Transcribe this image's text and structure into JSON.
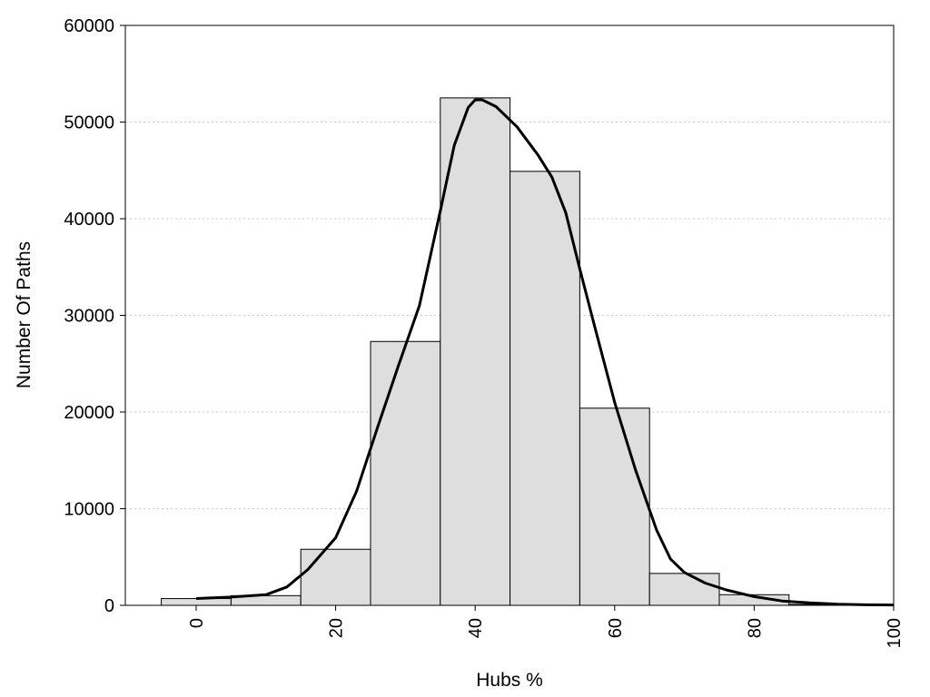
{
  "chart_data": {
    "type": "bar",
    "title": "",
    "xlabel": "Hubs %",
    "ylabel": "Number Of Paths",
    "xlim": [
      -10,
      100
    ],
    "ylim": [
      0,
      60000
    ],
    "x_ticks": [
      0,
      20,
      40,
      60,
      80,
      100
    ],
    "y_ticks": [
      0,
      10000,
      20000,
      30000,
      40000,
      50000,
      60000
    ],
    "grid": "horizontal dotted",
    "legend": "none",
    "bar_fill": "#dedede",
    "bar_edge": "#000000",
    "bins": [
      {
        "start": -5,
        "end": 5,
        "value": 700
      },
      {
        "start": 5,
        "end": 15,
        "value": 1000
      },
      {
        "start": 15,
        "end": 25,
        "value": 5800
      },
      {
        "start": 25,
        "end": 35,
        "value": 27300
      },
      {
        "start": 35,
        "end": 45,
        "value": 52500
      },
      {
        "start": 45,
        "end": 55,
        "value": 44900
      },
      {
        "start": 55,
        "end": 65,
        "value": 20400
      },
      {
        "start": 65,
        "end": 75,
        "value": 3300
      },
      {
        "start": 75,
        "end": 85,
        "value": 1100
      },
      {
        "start": 85,
        "end": 95,
        "value": 100
      },
      {
        "start": 95,
        "end": 105,
        "value": 0
      }
    ],
    "density_curve": {
      "color": "#000000",
      "x": [
        0,
        5,
        10,
        13,
        16,
        20,
        23,
        26,
        29,
        32,
        35,
        37,
        39,
        40,
        41,
        43,
        46,
        49,
        51,
        53,
        55,
        57,
        60,
        63,
        66,
        68,
        70,
        73,
        76,
        80,
        84,
        88,
        92,
        96,
        100
      ],
      "y": [
        700,
        850,
        1100,
        1900,
        3700,
        7000,
        11800,
        18400,
        24800,
        31000,
        40800,
        47600,
        51500,
        52300,
        52300,
        51600,
        49500,
        46600,
        44300,
        40600,
        34800,
        29200,
        21000,
        14000,
        7800,
        4800,
        3400,
        2300,
        1600,
        900,
        450,
        250,
        120,
        60,
        40
      ]
    }
  }
}
